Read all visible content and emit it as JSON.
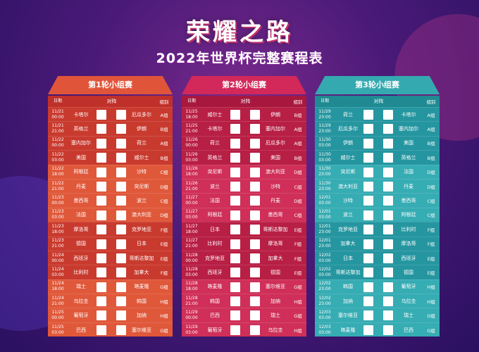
{
  "header": {
    "title": "荣耀之路",
    "subtitle": "2022年世界杯完整赛程表"
  },
  "table_headers": {
    "date": "日期",
    "match": "对阵",
    "group": "组别"
  },
  "rounds": [
    {
      "title": "第1轮小组赛",
      "matches": [
        {
          "date": "11/21",
          "time": "00:00",
          "home": "卡塔尔",
          "away": "厄瓜多尔",
          "group": "A组"
        },
        {
          "date": "11/21",
          "time": "21:00",
          "home": "英格兰",
          "away": "伊朗",
          "group": "B组"
        },
        {
          "date": "11/22",
          "time": "00:00",
          "home": "塞内加尔",
          "away": "荷兰",
          "group": "A组"
        },
        {
          "date": "11/22",
          "time": "03:00",
          "home": "美国",
          "away": "威尔士",
          "group": "B组"
        },
        {
          "date": "11/22",
          "time": "18:00",
          "home": "阿根廷",
          "away": "沙特",
          "group": "C组"
        },
        {
          "date": "11/22",
          "time": "21:00",
          "home": "丹麦",
          "away": "突尼斯",
          "group": "D组"
        },
        {
          "date": "11/23",
          "time": "00:00",
          "home": "墨西哥",
          "away": "波兰",
          "group": "C组"
        },
        {
          "date": "11/23",
          "time": "03:00",
          "home": "法国",
          "away": "澳大利亚",
          "group": "D组"
        },
        {
          "date": "11/23",
          "time": "18:00",
          "home": "摩洛哥",
          "away": "克罗地亚",
          "group": "F组"
        },
        {
          "date": "11/23",
          "time": "21:00",
          "home": "德国",
          "away": "日本",
          "group": "E组"
        },
        {
          "date": "11/24",
          "time": "00:00",
          "home": "西班牙",
          "away": "哥斯达黎加",
          "group": "E组"
        },
        {
          "date": "11/24",
          "time": "03:00",
          "home": "比利时",
          "away": "加拿大",
          "group": "F组"
        },
        {
          "date": "11/24",
          "time": "18:00",
          "home": "瑞士",
          "away": "喀麦隆",
          "group": "G组"
        },
        {
          "date": "11/24",
          "time": "21:00",
          "home": "乌拉圭",
          "away": "韩国",
          "group": "H组"
        },
        {
          "date": "11/25",
          "time": "00:00",
          "home": "葡萄牙",
          "away": "加纳",
          "group": "H组"
        },
        {
          "date": "11/25",
          "time": "03:00",
          "home": "巴西",
          "away": "塞尔维亚",
          "group": "G组"
        }
      ]
    },
    {
      "title": "第2轮小组赛",
      "matches": [
        {
          "date": "11/25",
          "time": "18:00",
          "home": "威尔士",
          "away": "伊朗",
          "group": "B组"
        },
        {
          "date": "11/25",
          "time": "21:00",
          "home": "卡塔尔",
          "away": "塞内加尔",
          "group": "A组"
        },
        {
          "date": "11/26",
          "time": "00:00",
          "home": "荷兰",
          "away": "厄瓜多尔",
          "group": "A组"
        },
        {
          "date": "11/26",
          "time": "03:00",
          "home": "英格兰",
          "away": "美国",
          "group": "B组"
        },
        {
          "date": "11/26",
          "time": "18:00",
          "home": "突尼斯",
          "away": "澳大利亚",
          "group": "D组"
        },
        {
          "date": "11/26",
          "time": "21:00",
          "home": "波兰",
          "away": "沙特",
          "group": "C组"
        },
        {
          "date": "11/27",
          "time": "00:00",
          "home": "法国",
          "away": "丹麦",
          "group": "D组"
        },
        {
          "date": "11/27",
          "time": "03:00",
          "home": "阿根廷",
          "away": "墨西哥",
          "group": "C组"
        },
        {
          "date": "11/27",
          "time": "18:00",
          "home": "日本",
          "away": "哥斯达黎加",
          "group": "E组"
        },
        {
          "date": "11/27",
          "time": "21:00",
          "home": "比利时",
          "away": "摩洛哥",
          "group": "F组"
        },
        {
          "date": "11/28",
          "time": "00:00",
          "home": "克罗地亚",
          "away": "加拿大",
          "group": "F组"
        },
        {
          "date": "11/28",
          "time": "03:00",
          "home": "西班牙",
          "away": "德国",
          "group": "E组"
        },
        {
          "date": "11/28",
          "time": "18:00",
          "home": "喀麦隆",
          "away": "塞尔维亚",
          "group": "G组"
        },
        {
          "date": "11/28",
          "time": "21:00",
          "home": "韩国",
          "away": "加纳",
          "group": "H组"
        },
        {
          "date": "11/29",
          "time": "00:00",
          "home": "巴西",
          "away": "瑞士",
          "group": "G组"
        },
        {
          "date": "11/29",
          "time": "03:00",
          "home": "葡萄牙",
          "away": "乌拉圭",
          "group": "H组"
        }
      ]
    },
    {
      "title": "第3轮小组赛",
      "matches": [
        {
          "date": "11/29",
          "time": "23:00",
          "home": "荷兰",
          "away": "卡塔尔",
          "group": "A组"
        },
        {
          "date": "11/29",
          "time": "23:00",
          "home": "厄瓜多尔",
          "away": "塞内加尔",
          "group": "A组"
        },
        {
          "date": "11/30",
          "time": "03:00",
          "home": "伊朗",
          "away": "美国",
          "group": "B组"
        },
        {
          "date": "11/30",
          "time": "03:00",
          "home": "威尔士",
          "away": "英格兰",
          "group": "B组"
        },
        {
          "date": "11/30",
          "time": "23:00",
          "home": "突尼斯",
          "away": "法国",
          "group": "D组"
        },
        {
          "date": "11/30",
          "time": "23:00",
          "home": "澳大利亚",
          "away": "丹麦",
          "group": "D组"
        },
        {
          "date": "12/01",
          "time": "03:00",
          "home": "沙特",
          "away": "墨西哥",
          "group": "C组"
        },
        {
          "date": "12/01",
          "time": "03:00",
          "home": "波兰",
          "away": "阿根廷",
          "group": "C组"
        },
        {
          "date": "12/01",
          "time": "23:00",
          "home": "克罗地亚",
          "away": "比利时",
          "group": "F组"
        },
        {
          "date": "12/01",
          "time": "23:00",
          "home": "加拿大",
          "away": "摩洛哥",
          "group": "F组"
        },
        {
          "date": "12/02",
          "time": "03:00",
          "home": "日本",
          "away": "西班牙",
          "group": "E组"
        },
        {
          "date": "12/02",
          "time": "03:00",
          "home": "哥斯达黎加",
          "away": "德国",
          "group": "E组"
        },
        {
          "date": "12/02",
          "time": "23:00",
          "home": "韩国",
          "away": "葡萄牙",
          "group": "H组"
        },
        {
          "date": "12/02",
          "time": "23:00",
          "home": "加纳",
          "away": "乌拉圭",
          "group": "H组"
        },
        {
          "date": "12/03",
          "time": "03:00",
          "home": "塞尔维亚",
          "away": "瑞士",
          "group": "G组"
        },
        {
          "date": "12/03",
          "time": "03:00",
          "home": "喀麦隆",
          "away": "巴西",
          "group": "G组"
        }
      ]
    }
  ]
}
